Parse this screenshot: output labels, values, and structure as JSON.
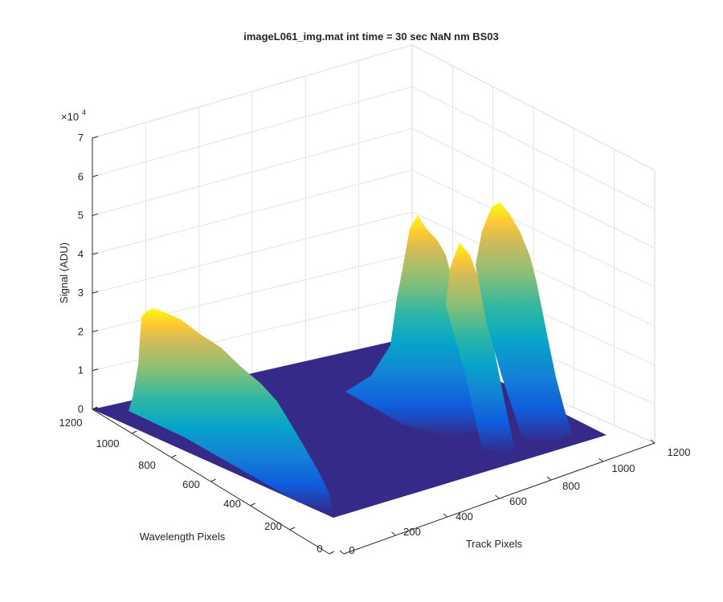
{
  "figure": {
    "title": "imageL061_img.mat int time = 30 sec  NaN nm BS03",
    "exponent_base": "×10",
    "exponent_power": "4"
  },
  "chart_data": {
    "type": "surface",
    "title": "imageL061_img.mat int time = 30 sec  NaN nm BS03",
    "xlabel": "Track Pixels",
    "ylabel": "Wavelength Pixels",
    "zlabel": "Signal (ADU)",
    "xlim": [
      0,
      1200
    ],
    "ylim": [
      0,
      1200
    ],
    "zlim": [
      0,
      70000
    ],
    "x_ticks": [
      "0",
      "200",
      "400",
      "600",
      "800",
      "1000",
      "1200"
    ],
    "y_ticks": [
      "0",
      "200",
      "400",
      "600",
      "800",
      "1000",
      "1200"
    ],
    "z_ticks": [
      "0",
      "1",
      "2",
      "3",
      "4",
      "5",
      "6",
      "7"
    ],
    "z_scale_exponent": 4,
    "grid": true,
    "colormap": "parula",
    "colors": [
      "#352a87",
      "#0f5cdd",
      "#1481d6",
      "#06a4ca",
      "#2eb7a4",
      "#87bf77",
      "#d1bb59",
      "#fec832",
      "#f9fb0e"
    ],
    "ridges": [
      {
        "x_range": [
          -40,
          60
        ],
        "peak_signal": 26000,
        "y_extent": [
          0,
          1100
        ]
      },
      {
        "x_range": [
          650,
          860
        ],
        "peak_signal": 49000,
        "y_extent": [
          0,
          1100
        ]
      },
      {
        "x_range": [
          760,
          980
        ],
        "peak_signal": 46000,
        "y_extent": [
          0,
          1100
        ]
      },
      {
        "x_range": [
          870,
          1100
        ],
        "peak_signal": 53000,
        "y_extent": [
          0,
          1100
        ]
      }
    ]
  }
}
